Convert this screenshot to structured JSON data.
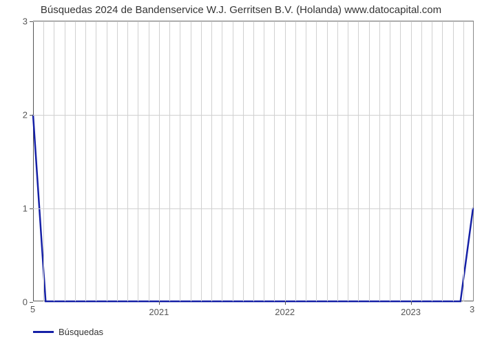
{
  "chart": {
    "type": "line",
    "title": "Búsquedas 2024 de Bandenservice W.J. Gerritsen B.V. (Holanda) www.datocapital.com",
    "title_fontsize": 15,
    "title_color": "#333333",
    "background_color": "#ffffff",
    "plot_border_color": "#888888",
    "axis_color": "#555555",
    "grid_color": "#d0d0d0",
    "ylim": [
      0,
      3
    ],
    "yticks": [
      0,
      1,
      2,
      3
    ],
    "xlim": [
      2020,
      2023.5
    ],
    "xticks_major": [
      2021,
      2022,
      2023
    ],
    "x_minor_count_between": 11,
    "corner_bottom_left": "5",
    "corner_bottom_right": "3",
    "series": {
      "name": "Búsquedas",
      "color": "#1520a6",
      "line_width": 2.5,
      "x": [
        2020.0,
        2020.1,
        2023.4,
        2023.5
      ],
      "y": [
        2.0,
        0.0,
        0.0,
        1.0
      ]
    },
    "legend": {
      "label": "Búsquedas",
      "swatch_color": "#1520a6",
      "font_color": "#333333",
      "fontsize": 13
    }
  }
}
